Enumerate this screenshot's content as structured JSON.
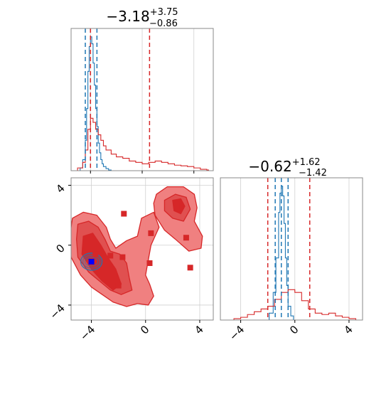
{
  "colors": {
    "blue": "#1f77b4",
    "red": "#d62728",
    "red_fill": "#f08080",
    "red_mid": "#e05050",
    "grid": "#d0d0d0"
  },
  "chart_data": [
    {
      "type": "histogram",
      "panel": "top-left",
      "title": {
        "main": "−3.18",
        "sup": "+3.75",
        "sub": "−0.86"
      },
      "xlim": [
        -5.5,
        5.5
      ],
      "grid": true,
      "blue_quantile_lines": [
        -4.4,
        -4.0,
        -3.5
      ],
      "red_quantile_lines": [
        -4.0,
        0.57
      ],
      "series": [
        {
          "color": "blue",
          "x": [
            -5.2,
            -4.8,
            -4.6,
            -4.4,
            -4.3,
            -4.2,
            -4.1,
            -4.0,
            -3.9,
            -3.8,
            -3.7,
            -3.6,
            -3.5,
            -3.4,
            -3.3,
            -3.2,
            -3.1,
            -3.0,
            -2.8,
            -2.6,
            -2.4
          ],
          "density": [
            0.0,
            0.02,
            0.08,
            0.22,
            0.45,
            0.72,
            0.9,
            0.97,
            0.92,
            0.78,
            0.62,
            0.45,
            0.32,
            0.2,
            0.13,
            0.08,
            0.05,
            0.03,
            0.015,
            0.005,
            0.0
          ]
        },
        {
          "color": "red",
          "x": [
            -5.4,
            -5.0,
            -4.6,
            -4.4,
            -4.2,
            -4.0,
            -3.8,
            -3.6,
            -3.4,
            -3.2,
            -3.0,
            -2.8,
            -2.4,
            -2.0,
            -1.5,
            -1.0,
            -0.5,
            0.0,
            0.5,
            1.0,
            1.5,
            2.0,
            2.5,
            3.0,
            3.5,
            4.0,
            4.5,
            5.0
          ],
          "density": [
            0.0,
            0.02,
            0.06,
            0.15,
            0.3,
            0.38,
            0.35,
            0.3,
            0.26,
            0.22,
            0.18,
            0.15,
            0.12,
            0.1,
            0.09,
            0.07,
            0.06,
            0.05,
            0.06,
            0.07,
            0.06,
            0.05,
            0.04,
            0.035,
            0.03,
            0.02,
            0.01,
            0.005
          ]
        }
      ]
    },
    {
      "type": "histogram",
      "panel": "bottom-right",
      "title": {
        "main": "−0.62",
        "sup": "+1.62",
        "sub": "−1.42"
      },
      "xlim": [
        -5.5,
        5.0
      ],
      "xticks": [
        "−4",
        "0",
        "4"
      ],
      "xtick_values": [
        -4,
        0,
        4
      ],
      "grid": true,
      "blue_quantile_lines": [
        -1.45,
        -1.0,
        -0.5
      ],
      "red_quantile_lines": [
        -2.0,
        1.1
      ],
      "series": [
        {
          "color": "blue",
          "x": [
            -2.2,
            -1.9,
            -1.6,
            -1.4,
            -1.2,
            -1.1,
            -1.0,
            -0.9,
            -0.8,
            -0.7,
            -0.6,
            -0.5,
            -0.3,
            -0.1
          ],
          "density": [
            0.0,
            0.05,
            0.2,
            0.45,
            0.78,
            0.92,
            0.97,
            0.9,
            0.7,
            0.45,
            0.25,
            0.1,
            0.03,
            0.0
          ]
        },
        {
          "color": "red",
          "x": [
            -5.0,
            -4.5,
            -4.0,
            -3.5,
            -3.0,
            -2.5,
            -2.0,
            -1.5,
            -1.0,
            -0.5,
            0.0,
            0.5,
            1.0,
            1.5,
            2.0,
            2.5,
            3.0,
            3.5,
            4.0,
            4.5
          ],
          "density": [
            0.0,
            0.01,
            0.02,
            0.04,
            0.06,
            0.08,
            0.1,
            0.15,
            0.2,
            0.22,
            0.2,
            0.14,
            0.08,
            0.05,
            0.04,
            0.05,
            0.03,
            0.02,
            0.01,
            0.0
          ]
        }
      ]
    },
    {
      "type": "scatter",
      "panel": "bottom-left",
      "subtype": "2d-density-contours",
      "xlim": [
        -5.5,
        5.0
      ],
      "ylim": [
        -5.0,
        4.5
      ],
      "xticks": [
        "−4",
        "0",
        "4"
      ],
      "xtick_values": [
        -4,
        0,
        4
      ],
      "yticks": [
        "4",
        "0",
        "−4"
      ],
      "ytick_values": [
        4,
        0,
        -4
      ],
      "grid": true,
      "red_points": [
        [
          -1.6,
          2.1
        ],
        [
          2.3,
          2.6
        ],
        [
          0.4,
          0.8
        ],
        [
          3.0,
          0.5
        ],
        [
          -3.7,
          -0.6
        ],
        [
          -2.6,
          -0.7
        ],
        [
          -1.7,
          -0.8
        ],
        [
          0.3,
          -1.2
        ],
        [
          3.3,
          -1.5
        ],
        [
          -2.0,
          -2.7
        ]
      ],
      "blue_points": [
        [
          -4.0,
          -1.1
        ]
      ]
    }
  ]
}
